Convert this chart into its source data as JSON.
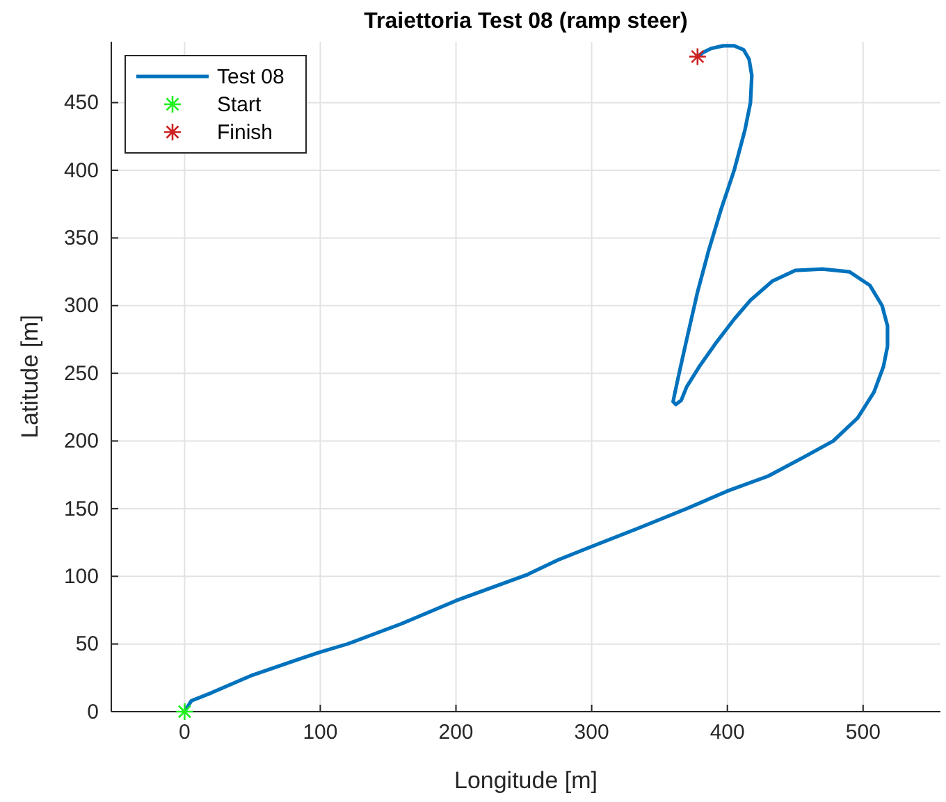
{
  "chart_data": {
    "type": "line",
    "title": "Traiettoria Test 08 (ramp steer)",
    "xlabel": "Longitude [m]",
    "ylabel": "Latitude [m]",
    "xlim": [
      -54,
      557
    ],
    "ylim": [
      0,
      495
    ],
    "xticks": [
      0,
      100,
      200,
      300,
      400,
      500
    ],
    "yticks": [
      0,
      50,
      100,
      150,
      200,
      250,
      300,
      350,
      400,
      450
    ],
    "grid": true,
    "legend": "top left",
    "series": [
      {
        "name": "Test 08",
        "color": "#0072bd",
        "marker": "none",
        "line_style": "solid",
        "x": [
          0,
          5,
          20,
          50,
          85,
          100,
          120,
          160,
          200,
          252,
          275,
          300,
          333,
          370,
          400,
          430,
          458,
          478,
          496,
          508,
          515,
          518,
          518,
          514,
          505,
          490,
          470,
          450,
          433,
          417,
          405,
          392,
          380,
          370,
          366,
          362,
          360,
          361,
          364,
          370,
          378,
          386,
          395,
          405,
          413,
          417,
          418,
          416,
          412,
          405,
          397,
          388,
          382,
          378
        ],
        "values": [
          0,
          8,
          14,
          27,
          39,
          44,
          50,
          65,
          82,
          101,
          112,
          122,
          135,
          150,
          163,
          174,
          189,
          200,
          217,
          236,
          255,
          270,
          285,
          300,
          315,
          325,
          327,
          326,
          318,
          304,
          290,
          273,
          256,
          240,
          230,
          227,
          229,
          234,
          248,
          275,
          310,
          340,
          370,
          400,
          430,
          450,
          470,
          482,
          489,
          492,
          492,
          490,
          487,
          484
        ]
      },
      {
        "name": "Start",
        "type": "scatter",
        "color": "#22ee22",
        "marker": "cross",
        "x": [
          0
        ],
        "values": [
          0
        ]
      },
      {
        "name": "Finish",
        "type": "scatter",
        "color": "#cc2222",
        "marker": "cross",
        "x": [
          378
        ],
        "values": [
          484
        ]
      }
    ]
  }
}
